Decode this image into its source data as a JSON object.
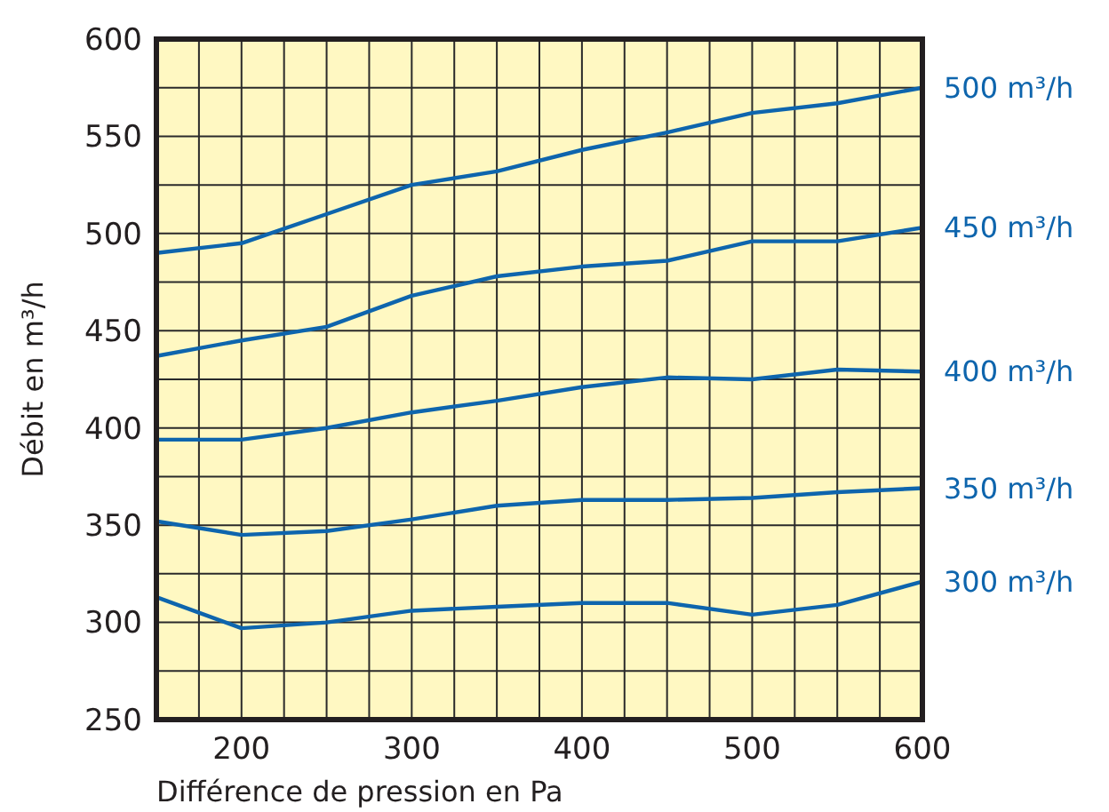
{
  "chart_data": {
    "type": "line",
    "xlabel": "Différence de pression en Pa",
    "ylabel": "Débit en m³/h",
    "x": [
      150,
      200,
      250,
      300,
      350,
      400,
      450,
      500,
      550,
      600
    ],
    "series": [
      {
        "name": "500 m³/h",
        "color": "#0e65ad",
        "values": [
          490,
          495,
          510,
          525,
          532,
          543,
          552,
          562,
          567,
          575
        ]
      },
      {
        "name": "450 m³/h",
        "color": "#0e65ad",
        "values": [
          437,
          445,
          452,
          468,
          478,
          483,
          486,
          496,
          496,
          503
        ]
      },
      {
        "name": "400 m³/h",
        "color": "#0e65ad",
        "values": [
          394,
          394,
          400,
          408,
          414,
          421,
          426,
          425,
          430,
          429
        ]
      },
      {
        "name": "350 m³/h",
        "color": "#0e65ad",
        "values": [
          352,
          345,
          347,
          353,
          360,
          363,
          363,
          364,
          367,
          369
        ]
      },
      {
        "name": "300 m³/h",
        "color": "#0e65ad",
        "values": [
          313,
          297,
          300,
          306,
          308,
          310,
          310,
          304,
          309,
          321
        ]
      }
    ],
    "xlim": [
      150,
      600
    ],
    "xticks": [
      {
        "value": 150,
        "label": null
      },
      {
        "value": 175,
        "label": null
      },
      200,
      {
        "value": 225,
        "label": null
      },
      {
        "value": 250,
        "label": null
      },
      {
        "value": 275,
        "label": null
      },
      300,
      {
        "value": 325,
        "label": null
      },
      {
        "value": 350,
        "label": null
      },
      {
        "value": 375,
        "label": null
      },
      400,
      {
        "value": 425,
        "label": null
      },
      {
        "value": 450,
        "label": null
      },
      {
        "value": 475,
        "label": null
      },
      500,
      {
        "value": 525,
        "label": null
      },
      {
        "value": 550,
        "label": null
      },
      {
        "value": 575,
        "label": null
      },
      600
    ],
    "ylim": [
      250,
      600
    ],
    "yticks": [
      250,
      {
        "value": 275,
        "label": null
      },
      300,
      {
        "value": 325,
        "label": null
      },
      350,
      {
        "value": 375,
        "label": null
      },
      400,
      {
        "value": 425,
        "label": null
      },
      450,
      {
        "value": 475,
        "label": null
      },
      500,
      {
        "value": 525,
        "label": null
      },
      550,
      {
        "value": 575,
        "label": null
      },
      600
    ],
    "grid": true,
    "marker": "none",
    "line_style": "solid"
  }
}
